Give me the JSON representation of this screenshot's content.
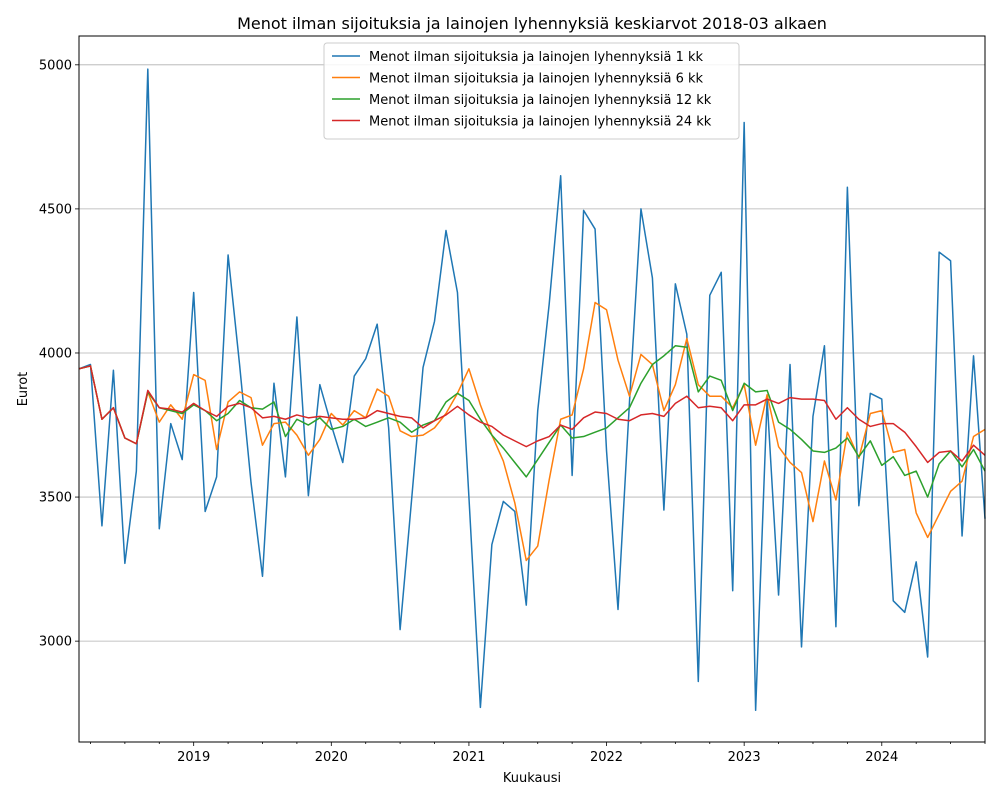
{
  "chart_data": {
    "type": "line",
    "title": "Menot ilman sijoituksia ja lainojen lyhennyksiä keskiarvot 2018-03 alkaen",
    "xlabel": "Kuukausi",
    "ylabel": "Eurot",
    "x_start": "2018-03",
    "x_end": "2024-10",
    "x_ticks": [
      "2019",
      "2020",
      "2021",
      "2022",
      "2023",
      "2024"
    ],
    "ylim": [
      2650,
      5100
    ],
    "y_ticks": [
      3000,
      3500,
      4000,
      4500,
      5000
    ],
    "grid": "horizontal",
    "legend": "upper center",
    "series": [
      {
        "name": "Menot ilman sijoituksia ja lainojen lyhennyksiä 1 kk",
        "color": "#1f77b4",
        "values": [
          3945,
          3960,
          3400,
          3940,
          3270,
          3590,
          4985,
          3390,
          3755,
          3630,
          4210,
          3450,
          3570,
          4340,
          3960,
          3550,
          3225,
          3895,
          3570,
          4125,
          3505,
          3890,
          3750,
          3620,
          3920,
          3980,
          4100,
          3740,
          3040,
          3490,
          3950,
          4110,
          4425,
          4210,
          3500,
          2770,
          3335,
          3485,
          3450,
          3125,
          3800,
          4170,
          4615,
          3575,
          4495,
          4430,
          3660,
          3110,
          3830,
          4500,
          4260,
          3455,
          4240,
          4065,
          2860,
          4200,
          4280,
          3175,
          4800,
          2760,
          3840,
          3160,
          3960,
          2980,
          3780,
          4025,
          3050,
          4575,
          3470,
          3860,
          3840,
          3140,
          3100,
          3275,
          2945,
          4350,
          4320,
          3365,
          3990,
          3425
        ]
      },
      {
        "name": "Menot ilman sijoituksia ja lainojen lyhennyksiä 6 kk",
        "color": "#ff7f0e",
        "values": [
          3945,
          3955,
          3770,
          3810,
          3705,
          3685,
          3865,
          3760,
          3820,
          3770,
          3925,
          3905,
          3665,
          3830,
          3865,
          3845,
          3680,
          3755,
          3760,
          3715,
          3645,
          3700,
          3790,
          3750,
          3800,
          3775,
          3875,
          3850,
          3730,
          3710,
          3715,
          3740,
          3790,
          3860,
          3945,
          3820,
          3715,
          3625,
          3480,
          3280,
          3330,
          3560,
          3770,
          3785,
          3945,
          4175,
          4150,
          3975,
          3850,
          3995,
          3960,
          3800,
          3890,
          4050,
          3890,
          3850,
          3850,
          3810,
          3890,
          3680,
          3855,
          3675,
          3620,
          3585,
          3415,
          3625,
          3490,
          3725,
          3635,
          3790,
          3800,
          3655,
          3665,
          3445,
          3360,
          3440,
          3520,
          3555,
          3710,
          3735
        ]
      },
      {
        "name": "Menot ilman sijoituksia ja lainojen lyhennyksiä 12 kk",
        "color": "#2ca02c",
        "values": [
          3945,
          3955,
          3770,
          3810,
          3705,
          3685,
          3865,
          3810,
          3800,
          3790,
          3820,
          3800,
          3765,
          3790,
          3835,
          3810,
          3805,
          3830,
          3710,
          3770,
          3750,
          3775,
          3735,
          3745,
          3770,
          3745,
          3760,
          3775,
          3760,
          3725,
          3750,
          3765,
          3830,
          3860,
          3835,
          3770,
          3715,
          3670,
          3620,
          3570,
          3630,
          3690,
          3750,
          3705,
          3710,
          3725,
          3740,
          3775,
          3810,
          3895,
          3960,
          3990,
          4025,
          4020,
          3865,
          3920,
          3905,
          3800,
          3895,
          3865,
          3870,
          3760,
          3735,
          3700,
          3660,
          3655,
          3670,
          3705,
          3640,
          3695,
          3610,
          3640,
          3575,
          3590,
          3500,
          3615,
          3660,
          3605,
          3665,
          3590
        ]
      },
      {
        "name": "Menot ilman sijoituksia ja lainojen lyhennyksiä 24 kk",
        "color": "#d62728",
        "values": [
          3945,
          3955,
          3770,
          3810,
          3705,
          3685,
          3870,
          3810,
          3805,
          3795,
          3825,
          3800,
          3780,
          3815,
          3825,
          3810,
          3775,
          3780,
          3770,
          3785,
          3775,
          3780,
          3775,
          3770,
          3770,
          3775,
          3800,
          3790,
          3780,
          3775,
          3740,
          3765,
          3785,
          3815,
          3785,
          3760,
          3745,
          3715,
          3695,
          3675,
          3695,
          3710,
          3750,
          3735,
          3775,
          3795,
          3790,
          3770,
          3765,
          3785,
          3790,
          3780,
          3825,
          3850,
          3810,
          3815,
          3810,
          3765,
          3820,
          3820,
          3840,
          3825,
          3845,
          3840,
          3840,
          3835,
          3770,
          3810,
          3770,
          3745,
          3755,
          3755,
          3725,
          3675,
          3620,
          3655,
          3660,
          3625,
          3680,
          3645
        ]
      }
    ]
  }
}
